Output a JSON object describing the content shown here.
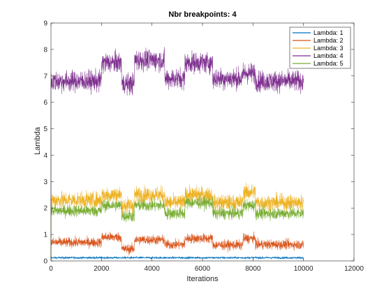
{
  "chart_data": {
    "type": "line",
    "title": "Nbr breakpoints: 4",
    "xlabel": "Iterations",
    "ylabel": "Lambda",
    "xlim": [
      0,
      12000
    ],
    "ylim": [
      0,
      9
    ],
    "x_ticks": [
      0,
      2000,
      4000,
      6000,
      8000,
      10000,
      12000
    ],
    "y_ticks": [
      0,
      1,
      2,
      3,
      4,
      5,
      6,
      7,
      8,
      9
    ],
    "grid": false,
    "legend_position": "top-right",
    "iterations": 10000,
    "series": [
      {
        "name": "Lambda: 1",
        "color": "#0072BD",
        "noise": 0.03,
        "segments": [
          {
            "x": [
              0,
              10000
            ],
            "value": 0.12
          }
        ]
      },
      {
        "name": "Lambda: 2",
        "color": "#D95319",
        "noise": 0.13,
        "segments": [
          {
            "x": [
              0,
              2000
            ],
            "value": 0.7
          },
          {
            "x": [
              2000,
              2800
            ],
            "value": 0.9
          },
          {
            "x": [
              2800,
              3300
            ],
            "value": 0.45
          },
          {
            "x": [
              3300,
              4500
            ],
            "value": 0.8
          },
          {
            "x": [
              4500,
              5300
            ],
            "value": 0.62
          },
          {
            "x": [
              5300,
              6400
            ],
            "value": 0.85
          },
          {
            "x": [
              6400,
              7600
            ],
            "value": 0.6
          },
          {
            "x": [
              7600,
              8100
            ],
            "value": 0.85
          },
          {
            "x": [
              8100,
              10000
            ],
            "value": 0.62
          }
        ]
      },
      {
        "name": "Lambda: 3",
        "color": "#EDB120",
        "noise": 0.22,
        "segments": [
          {
            "x": [
              0,
              2000
            ],
            "value": 2.3
          },
          {
            "x": [
              2000,
              2800
            ],
            "value": 2.5
          },
          {
            "x": [
              2800,
              3300
            ],
            "value": 2.1
          },
          {
            "x": [
              3300,
              4500
            ],
            "value": 2.5
          },
          {
            "x": [
              4500,
              5300
            ],
            "value": 2.2
          },
          {
            "x": [
              5300,
              6400
            ],
            "value": 2.5
          },
          {
            "x": [
              6400,
              7600
            ],
            "value": 2.2
          },
          {
            "x": [
              7600,
              8100
            ],
            "value": 2.6
          },
          {
            "x": [
              8100,
              10000
            ],
            "value": 2.2
          }
        ]
      },
      {
        "name": "Lambda: 4",
        "color": "#7E2F8E",
        "noise": 0.28,
        "segments": [
          {
            "x": [
              0,
              2000
            ],
            "value": 6.8
          },
          {
            "x": [
              2000,
              2800
            ],
            "value": 7.5
          },
          {
            "x": [
              2800,
              3300
            ],
            "value": 6.7
          },
          {
            "x": [
              3300,
              4500
            ],
            "value": 7.6
          },
          {
            "x": [
              4500,
              5300
            ],
            "value": 6.9
          },
          {
            "x": [
              5300,
              6400
            ],
            "value": 7.5
          },
          {
            "x": [
              6400,
              7600
            ],
            "value": 6.9
          },
          {
            "x": [
              7600,
              8100
            ],
            "value": 7.1
          },
          {
            "x": [
              8100,
              10000
            ],
            "value": 6.8
          }
        ]
      },
      {
        "name": "Lambda: 5",
        "color": "#77AC30",
        "noise": 0.16,
        "segments": [
          {
            "x": [
              0,
              2000
            ],
            "value": 1.9
          },
          {
            "x": [
              2000,
              2800
            ],
            "value": 2.1
          },
          {
            "x": [
              2800,
              3300
            ],
            "value": 1.7
          },
          {
            "x": [
              3300,
              4500
            ],
            "value": 2.1
          },
          {
            "x": [
              4500,
              5300
            ],
            "value": 1.8
          },
          {
            "x": [
              5300,
              6400
            ],
            "value": 2.2
          },
          {
            "x": [
              6400,
              7600
            ],
            "value": 1.8
          },
          {
            "x": [
              7600,
              8100
            ],
            "value": 2.1
          },
          {
            "x": [
              8100,
              10000
            ],
            "value": 1.8
          }
        ]
      }
    ]
  }
}
